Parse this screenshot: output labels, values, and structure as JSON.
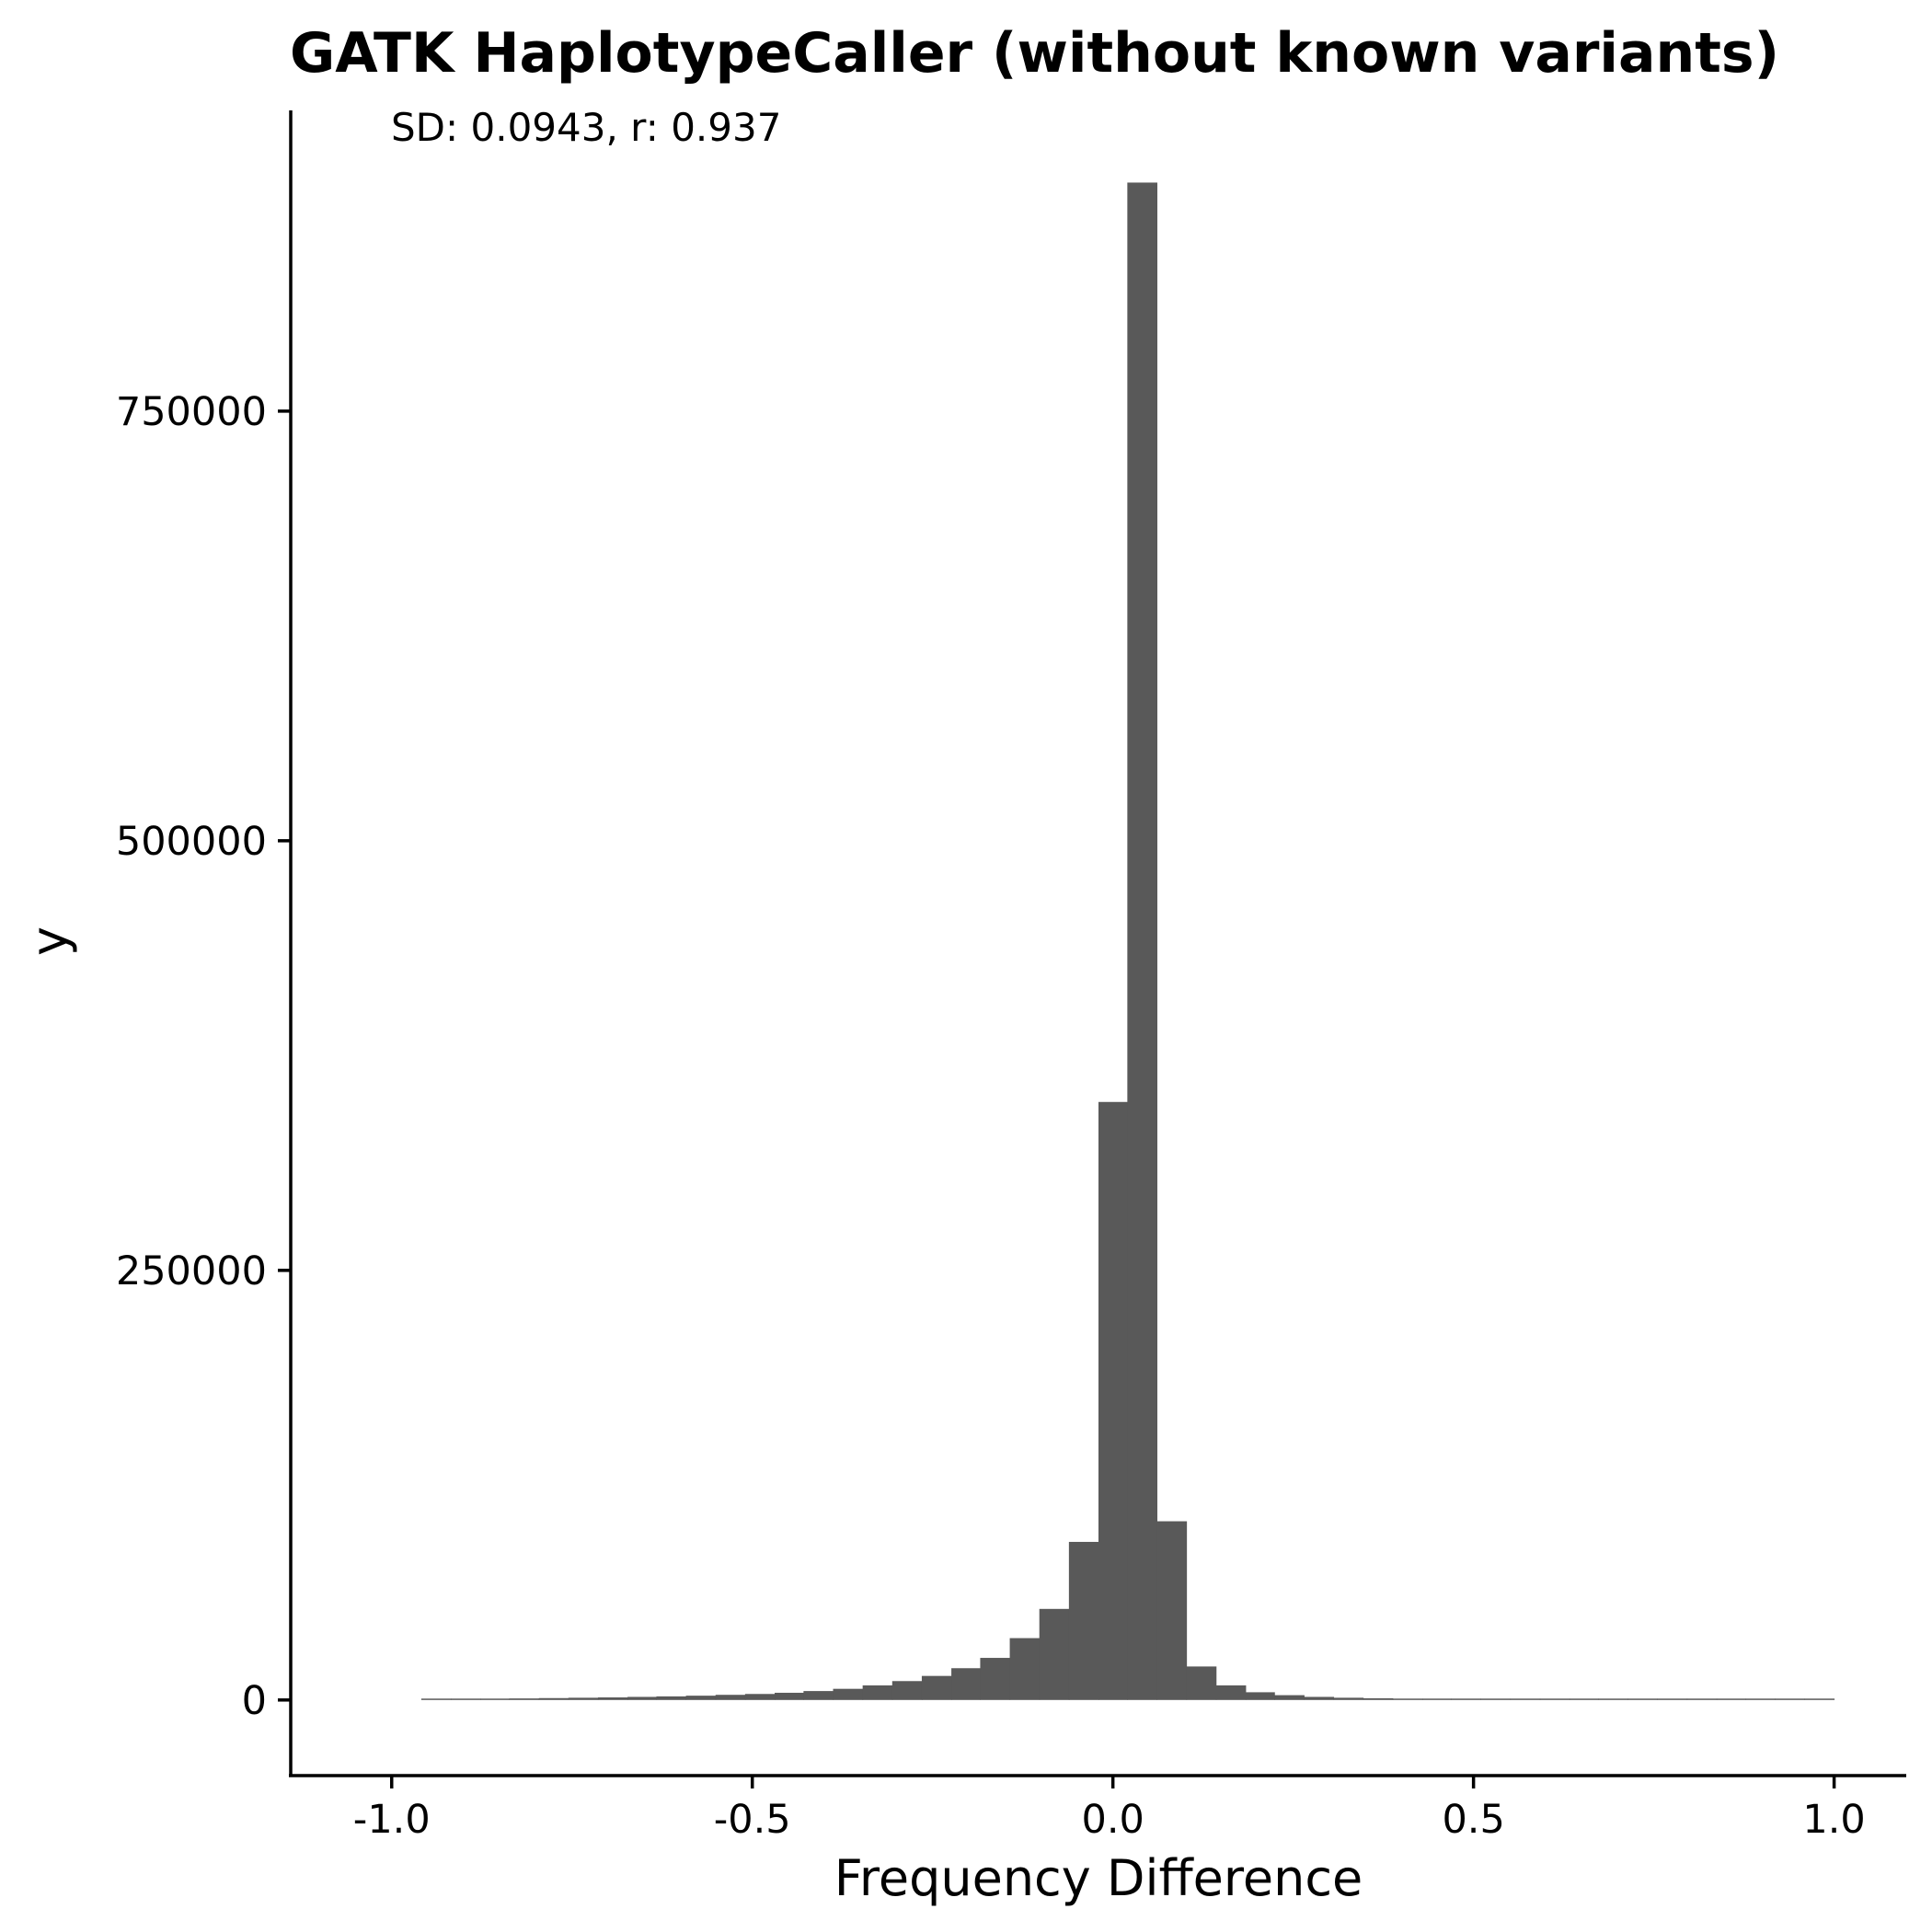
{
  "chart_data": {
    "type": "bar",
    "title": "GATK HaplotypeCaller (without known variants)",
    "subtitle": "SD: 0.0943, r: 0.937",
    "xlabel": "Frequency Difference",
    "ylabel": "y",
    "xlim": [
      -1.14,
      1.1
    ],
    "ylim": [
      -44000,
      925000
    ],
    "x_ticks": [
      -1.0,
      -0.5,
      0.0,
      0.5,
      1.0
    ],
    "x_tick_labels": [
      "-1.0",
      "-0.5",
      "0.0",
      "0.5",
      "1.0"
    ],
    "y_ticks": [
      0,
      250000,
      500000,
      750000
    ],
    "y_tick_labels": [
      "0",
      "250000",
      "500000",
      "750000"
    ],
    "grid": false,
    "bar_color": "#595959",
    "bin_width": 0.0408,
    "bins": [
      {
        "x0": -0.959,
        "x1": -0.918,
        "value": 300
      },
      {
        "x0": -0.918,
        "x1": -0.877,
        "value": 500
      },
      {
        "x0": -0.877,
        "x1": -0.837,
        "value": 700
      },
      {
        "x0": -0.837,
        "x1": -0.796,
        "value": 900
      },
      {
        "x0": -0.796,
        "x1": -0.755,
        "value": 1100
      },
      {
        "x0": -0.755,
        "x1": -0.714,
        "value": 1300
      },
      {
        "x0": -0.714,
        "x1": -0.673,
        "value": 1500
      },
      {
        "x0": -0.673,
        "x1": -0.633,
        "value": 1800
      },
      {
        "x0": -0.633,
        "x1": -0.592,
        "value": 2100
      },
      {
        "x0": -0.592,
        "x1": -0.551,
        "value": 2500
      },
      {
        "x0": -0.551,
        "x1": -0.51,
        "value": 3000
      },
      {
        "x0": -0.51,
        "x1": -0.469,
        "value": 3500
      },
      {
        "x0": -0.469,
        "x1": -0.429,
        "value": 4200
      },
      {
        "x0": -0.429,
        "x1": -0.388,
        "value": 5200
      },
      {
        "x0": -0.388,
        "x1": -0.347,
        "value": 6500
      },
      {
        "x0": -0.347,
        "x1": -0.306,
        "value": 8500
      },
      {
        "x0": -0.306,
        "x1": -0.265,
        "value": 11000
      },
      {
        "x0": -0.265,
        "x1": -0.224,
        "value": 14000
      },
      {
        "x0": -0.224,
        "x1": -0.184,
        "value": 18500
      },
      {
        "x0": -0.184,
        "x1": -0.143,
        "value": 24500
      },
      {
        "x0": -0.143,
        "x1": -0.102,
        "value": 36000
      },
      {
        "x0": -0.102,
        "x1": -0.061,
        "value": 53000
      },
      {
        "x0": -0.061,
        "x1": -0.02,
        "value": 92000
      },
      {
        "x0": -0.02,
        "x1": 0.02,
        "value": 348000
      },
      {
        "x0": 0.02,
        "x1": 0.061,
        "value": 883000
      },
      {
        "x0": 0.061,
        "x1": 0.102,
        "value": 104000
      },
      {
        "x0": 0.102,
        "x1": 0.143,
        "value": 19500
      },
      {
        "x0": 0.143,
        "x1": 0.184,
        "value": 8500
      },
      {
        "x0": 0.184,
        "x1": 0.224,
        "value": 4500
      },
      {
        "x0": 0.224,
        "x1": 0.265,
        "value": 2800
      },
      {
        "x0": 0.265,
        "x1": 0.306,
        "value": 1800
      },
      {
        "x0": 0.306,
        "x1": 0.347,
        "value": 1300
      },
      {
        "x0": 0.347,
        "x1": 0.388,
        "value": 1000
      },
      {
        "x0": 0.388,
        "x1": 0.429,
        "value": 800
      },
      {
        "x0": 0.429,
        "x1": 0.469,
        "value": 650
      },
      {
        "x0": 0.469,
        "x1": 0.51,
        "value": 500
      },
      {
        "x0": 0.51,
        "x1": 0.551,
        "value": 400
      },
      {
        "x0": 0.551,
        "x1": 0.592,
        "value": 350
      },
      {
        "x0": 0.592,
        "x1": 0.633,
        "value": 300
      },
      {
        "x0": 0.633,
        "x1": 0.673,
        "value": 250
      },
      {
        "x0": 0.673,
        "x1": 0.714,
        "value": 220
      },
      {
        "x0": 0.714,
        "x1": 0.755,
        "value": 200
      },
      {
        "x0": 0.755,
        "x1": 0.796,
        "value": 180
      },
      {
        "x0": 0.796,
        "x1": 0.837,
        "value": 160
      },
      {
        "x0": 0.837,
        "x1": 0.877,
        "value": 150
      },
      {
        "x0": 0.877,
        "x1": 0.918,
        "value": 140
      },
      {
        "x0": 0.918,
        "x1": 0.959,
        "value": 130
      },
      {
        "x0": 0.959,
        "x1": 1.0,
        "value": 150
      }
    ]
  }
}
